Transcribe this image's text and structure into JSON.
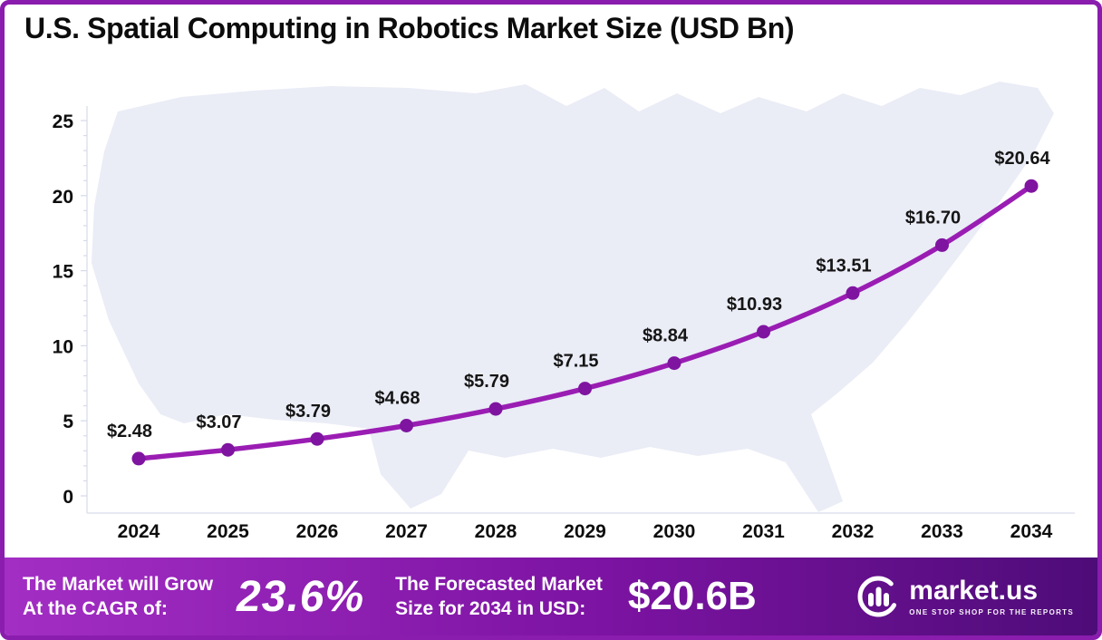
{
  "title": "U.S. Spatial Computing in Robotics Market Size (USD Bn)",
  "chart_data": {
    "type": "line",
    "title": "U.S. Spatial Computing in Robotics Market Size (USD Bn)",
    "categories": [
      "2024",
      "2025",
      "2026",
      "2027",
      "2028",
      "2029",
      "2030",
      "2031",
      "2032",
      "2033",
      "2034"
    ],
    "values": [
      2.48,
      3.07,
      3.79,
      4.68,
      5.79,
      7.15,
      8.84,
      10.93,
      13.51,
      16.7,
      20.64
    ],
    "data_labels": [
      "$2.48",
      "$3.07",
      "$3.79",
      "$4.68",
      "$5.79",
      "$7.15",
      "$8.84",
      "$10.93",
      "$13.51",
      "$16.70",
      "$20.64"
    ],
    "xlabel": "",
    "ylabel": "",
    "ylim": [
      0,
      25
    ],
    "yticks": [
      0,
      5,
      10,
      15,
      20,
      25
    ],
    "grid": false,
    "legend": false,
    "line_color": "#9a1db3",
    "marker_color": "#7f14a0",
    "background": "us-map-silhouette",
    "map_color": "#eaecf6"
  },
  "footer": {
    "cagr_label_line1": "The Market will Grow",
    "cagr_label_line2": "At the CAGR of:",
    "cagr_value": "23.6%",
    "forecast_label_line1": "The Forecasted Market",
    "forecast_label_line2": "Size for 2034 in USD:",
    "forecast_value": "$20.6B",
    "brand_name": "market.us",
    "brand_tagline": "ONE STOP SHOP FOR THE REPORTS"
  },
  "colors": {
    "border": "#8a1cae",
    "footer_gradient_start": "#a32ec4",
    "footer_gradient_mid": "#7c13a2",
    "footer_gradient_end": "#4e0c78",
    "title_text": "#0c0c0c",
    "axis_text": "#0d0d0d"
  }
}
